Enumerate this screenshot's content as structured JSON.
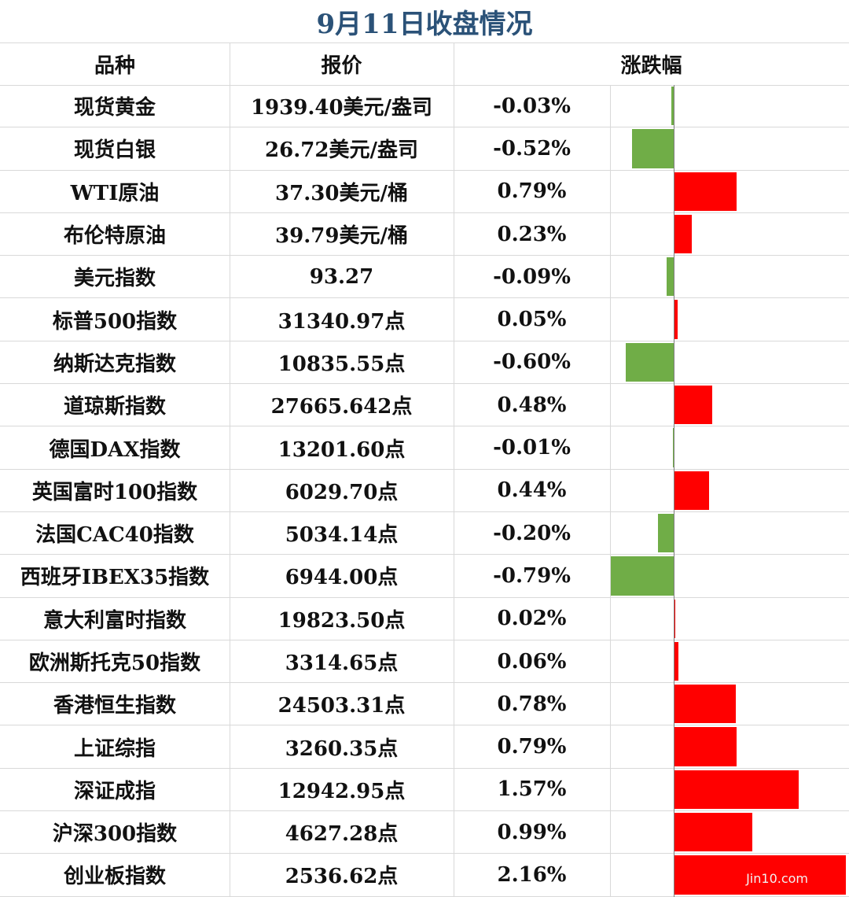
{
  "title": "9月11日收盘情况",
  "columns": {
    "name": "品种",
    "price": "报价",
    "change": "涨跌幅"
  },
  "watermark": "Jin10.com",
  "colors": {
    "positive": "#ff0000",
    "negative": "#70ad47",
    "title": "#2b5278"
  },
  "chart_data": {
    "type": "bar",
    "title": "9月11日收盘情况",
    "orientation": "horizontal",
    "categories": [
      "现货黄金",
      "现货白银",
      "WTI原油",
      "布伦特原油",
      "美元指数",
      "标普500指数",
      "纳斯达克指数",
      "道琼斯指数",
      "德国DAX指数",
      "英国富时100指数",
      "法国CAC40指数",
      "西班牙IBEX35指数",
      "意大利富时指数",
      "欧洲斯托克50指数",
      "香港恒生指数",
      "上证综指",
      "深证成指",
      "沪深300指数",
      "创业板指数"
    ],
    "values": [
      -0.03,
      -0.52,
      0.79,
      0.23,
      -0.09,
      0.05,
      -0.6,
      0.48,
      -0.01,
      0.44,
      -0.2,
      -0.79,
      0.02,
      0.06,
      0.78,
      0.79,
      1.57,
      0.99,
      2.16
    ],
    "xlim": [
      -0.79,
      2.16
    ],
    "rows": [
      {
        "name": "现货黄金",
        "price": "1939.40美元/盎司",
        "pct": "-0.03%"
      },
      {
        "name": "现货白银",
        "price": "26.72美元/盎司",
        "pct": "-0.52%"
      },
      {
        "name": "WTI原油",
        "price": "37.30美元/桶",
        "pct": "0.79%"
      },
      {
        "name": "布伦特原油",
        "price": "39.79美元/桶",
        "pct": "0.23%"
      },
      {
        "name": "美元指数",
        "price": "93.27",
        "pct": "-0.09%"
      },
      {
        "name": "标普500指数",
        "price": "31340.97点",
        "pct": "0.05%"
      },
      {
        "name": "纳斯达克指数",
        "price": "10835.55点",
        "pct": "-0.60%"
      },
      {
        "name": "道琼斯指数",
        "price": "27665.642点",
        "pct": "0.48%"
      },
      {
        "name": "德国DAX指数",
        "price": "13201.60点",
        "pct": "-0.01%"
      },
      {
        "name": "英国富时100指数",
        "price": "6029.70点",
        "pct": "0.44%"
      },
      {
        "name": "法国CAC40指数",
        "price": "5034.14点",
        "pct": "-0.20%"
      },
      {
        "name": "西班牙IBEX35指数",
        "price": "6944.00点",
        "pct": "-0.79%"
      },
      {
        "name": "意大利富时指数",
        "price": "19823.50点",
        "pct": "0.02%"
      },
      {
        "name": "欧洲斯托克50指数",
        "price": "3314.65点",
        "pct": "0.06%"
      },
      {
        "name": "香港恒生指数",
        "price": "24503.31点",
        "pct": "0.78%"
      },
      {
        "name": "上证综指",
        "price": "3260.35点",
        "pct": "0.79%"
      },
      {
        "name": "深证成指",
        "price": "12942.95点",
        "pct": "1.57%"
      },
      {
        "name": "沪深300指数",
        "price": "4627.28点",
        "pct": "0.99%"
      },
      {
        "name": "创业板指数",
        "price": "2536.62点",
        "pct": "2.16%"
      }
    ]
  }
}
